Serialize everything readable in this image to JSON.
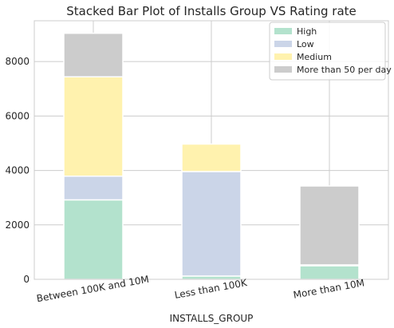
{
  "chart_data": {
    "type": "bar",
    "stacked": true,
    "title": "Stacked Bar Plot of Installs Group VS Rating rate",
    "xlabel": "INSTALLS_GROUP",
    "ylabel": "",
    "categories": [
      "Between 100K and 10M",
      "Less than 100K",
      "More than 10M"
    ],
    "series": [
      {
        "name": "High",
        "color": "#b3e2cd",
        "values": [
          2920,
          120,
          500
        ]
      },
      {
        "name": "Low",
        "color": "#cbd5e8",
        "values": [
          870,
          3840,
          30
        ]
      },
      {
        "name": "Medium",
        "color": "#fff2ae",
        "values": [
          3650,
          1010,
          0
        ]
      },
      {
        "name": "More than 50 per day",
        "color": "#cccccc",
        "values": [
          1600,
          0,
          2900
        ]
      }
    ],
    "ylim": [
      0,
      9500
    ],
    "yticks": [
      0,
      2000,
      4000,
      6000,
      8000
    ],
    "grid": true,
    "legend_position": "top-right"
  }
}
